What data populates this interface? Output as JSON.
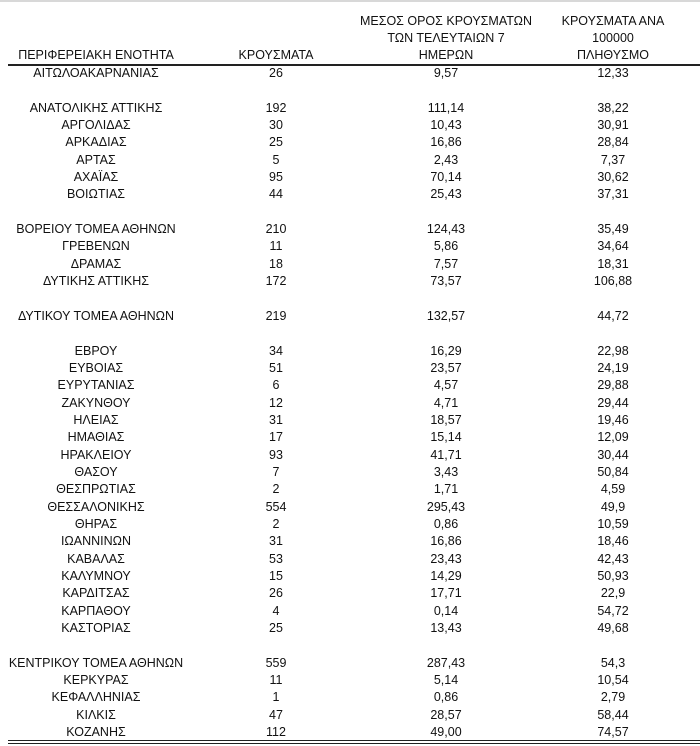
{
  "table": {
    "headers": [
      "ΠΕΡΙΦΕΡΕΙΑΚΗ ΕΝΟΤΗΤΑ",
      "ΚΡΟΥΣΜΑΤΑ",
      "ΜΕΣΟΣ ΟΡΟΣ ΚΡΟΥΣΜΑΤΩΝ ΤΩΝ ΤΕΛΕΥΤΑΙΩΝ 7 ΗΜΕΡΩΝ",
      "ΚΡΟΥΣΜΑΤΑ ΑΝΑ 100000 ΠΛΗΘΥΣΜΟ"
    ],
    "header_lines": {
      "avg": [
        "ΜΕΣΟΣ ΟΡΟΣ ΚΡΟΥΣΜΑΤΩΝ",
        "ΤΩΝ ΤΕΛΕΥΤΑΙΩΝ 7",
        "ΗΜΕΡΩΝ"
      ],
      "per100k": [
        "ΚΡΟΥΣΜΑΤΑ ΑΝΑ 100000",
        "ΠΛΗΘΥΣΜΟ"
      ]
    },
    "rows": [
      [
        "ΑΙΤΩΛΟΑΚΑΡΝΑΝΙΑΣ",
        "26",
        "9,57",
        "12,33"
      ],
      null,
      [
        "ΑΝΑΤΟΛΙΚΗΣ ΑΤΤΙΚΗΣ",
        "192",
        "111,14",
        "38,22"
      ],
      [
        "ΑΡΓΟΛΙΔΑΣ",
        "30",
        "10,43",
        "30,91"
      ],
      [
        "ΑΡΚΑΔΙΑΣ",
        "25",
        "16,86",
        "28,84"
      ],
      [
        "ΑΡΤΑΣ",
        "5",
        "2,43",
        "7,37"
      ],
      [
        "ΑΧΑΪΑΣ",
        "95",
        "70,14",
        "30,62"
      ],
      [
        "ΒΟΙΩΤΙΑΣ",
        "44",
        "25,43",
        "37,31"
      ],
      null,
      [
        "ΒΟΡΕΙΟΥ ΤΟΜΕΑ ΑΘΗΝΩΝ",
        "210",
        "124,43",
        "35,49"
      ],
      [
        "ΓΡΕΒΕΝΩΝ",
        "11",
        "5,86",
        "34,64"
      ],
      [
        "ΔΡΑΜΑΣ",
        "18",
        "7,57",
        "18,31"
      ],
      [
        "ΔΥΤΙΚΗΣ ΑΤΤΙΚΗΣ",
        "172",
        "73,57",
        "106,88"
      ],
      null,
      [
        "ΔΥΤΙΚΟΥ ΤΟΜΕΑ ΑΘΗΝΩΝ",
        "219",
        "132,57",
        "44,72"
      ],
      null,
      [
        "ΕΒΡΟΥ",
        "34",
        "16,29",
        "22,98"
      ],
      [
        "ΕΥΒΟΙΑΣ",
        "51",
        "23,57",
        "24,19"
      ],
      [
        "ΕΥΡΥΤΑΝΙΑΣ",
        "6",
        "4,57",
        "29,88"
      ],
      [
        "ΖΑΚΥΝΘΟΥ",
        "12",
        "4,71",
        "29,44"
      ],
      [
        "ΗΛΕΙΑΣ",
        "31",
        "18,57",
        "19,46"
      ],
      [
        "ΗΜΑΘΙΑΣ",
        "17",
        "15,14",
        "12,09"
      ],
      [
        "ΗΡΑΚΛΕΙΟΥ",
        "93",
        "41,71",
        "30,44"
      ],
      [
        "ΘΑΣΟΥ",
        "7",
        "3,43",
        "50,84"
      ],
      [
        "ΘΕΣΠΡΩΤΙΑΣ",
        "2",
        "1,71",
        "4,59"
      ],
      [
        "ΘΕΣΣΑΛΟΝΙΚΗΣ",
        "554",
        "295,43",
        "49,9"
      ],
      [
        "ΘΗΡΑΣ",
        "2",
        "0,86",
        "10,59"
      ],
      [
        "ΙΩΑΝΝΙΝΩΝ",
        "31",
        "16,86",
        "18,46"
      ],
      [
        "ΚΑΒΑΛΑΣ",
        "53",
        "23,43",
        "42,43"
      ],
      [
        "ΚΑΛΥΜΝΟΥ",
        "15",
        "14,29",
        "50,93"
      ],
      [
        "ΚΑΡΔΙΤΣΑΣ",
        "26",
        "17,71",
        "22,9"
      ],
      [
        "ΚΑΡΠΑΘΟΥ",
        "4",
        "0,14",
        "54,72"
      ],
      [
        "ΚΑΣΤΟΡΙΑΣ",
        "25",
        "13,43",
        "49,68"
      ],
      null,
      [
        "ΚΕΝΤΡΙΚΟΥ ΤΟΜΕΑ ΑΘΗΝΩΝ",
        "559",
        "287,43",
        "54,3"
      ],
      [
        "ΚΕΡΚΥΡΑΣ",
        "11",
        "5,14",
        "10,54"
      ],
      [
        "ΚΕΦΑΛΛΗΝΙΑΣ",
        "1",
        "0,86",
        "2,79"
      ],
      [
        "ΚΙΛΚΙΣ",
        "47",
        "28,57",
        "58,44"
      ],
      [
        "ΚΟΖΑΝΗΣ",
        "112",
        "49,00",
        "74,57"
      ]
    ]
  }
}
